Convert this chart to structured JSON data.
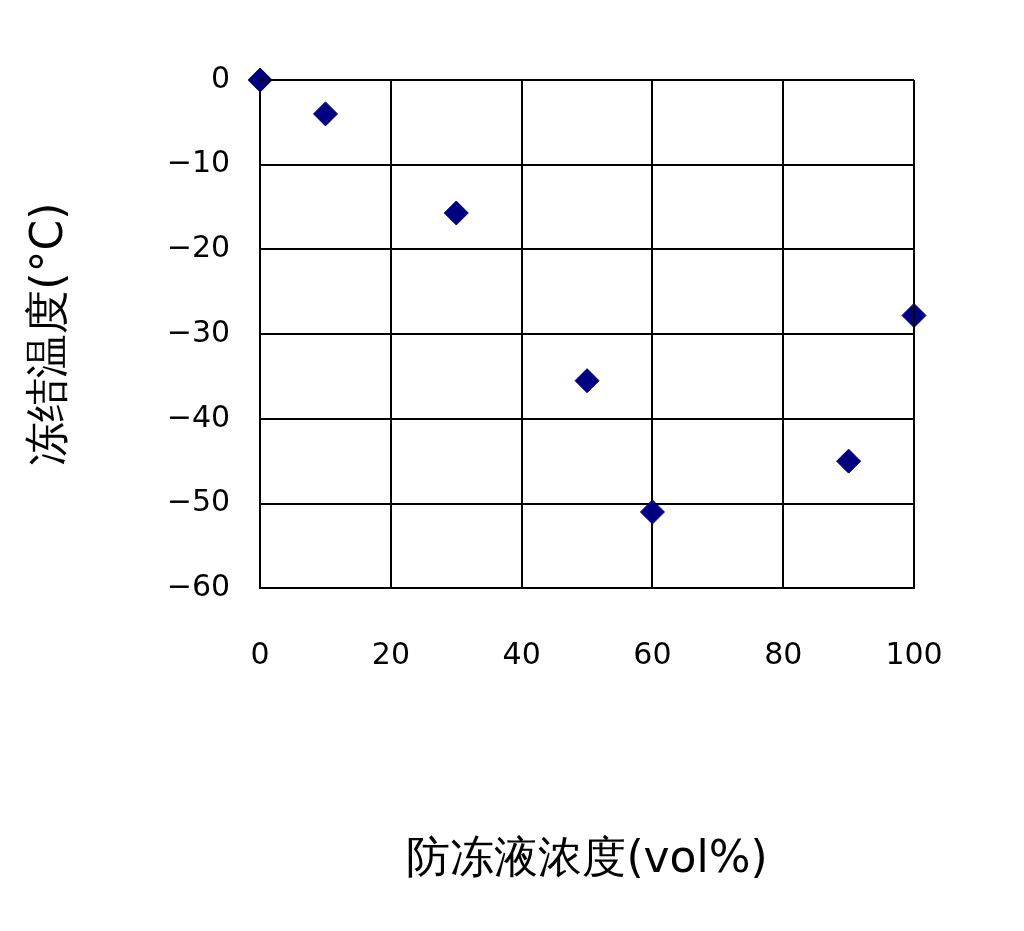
{
  "chart_data": {
    "type": "scatter",
    "xlabel": "防冻液浓度(vol%)",
    "ylabel": "冻结温度(°C)",
    "series": [
      {
        "color": "#000080",
        "x": [
          0,
          10,
          30,
          50,
          60,
          90,
          100
        ],
        "values": [
          0,
          -4,
          -15.7,
          -35.5,
          -51,
          -45,
          -27.8
        ]
      }
    ],
    "xlim": [
      0,
      100
    ],
    "xticks": [
      0,
      20,
      40,
      60,
      80,
      100
    ],
    "ylim": [
      -60,
      0
    ],
    "yticks": [
      0,
      -10,
      -20,
      -30,
      -40,
      -50,
      -60
    ],
    "grid": true,
    "marker": "diamond",
    "legend": false
  }
}
